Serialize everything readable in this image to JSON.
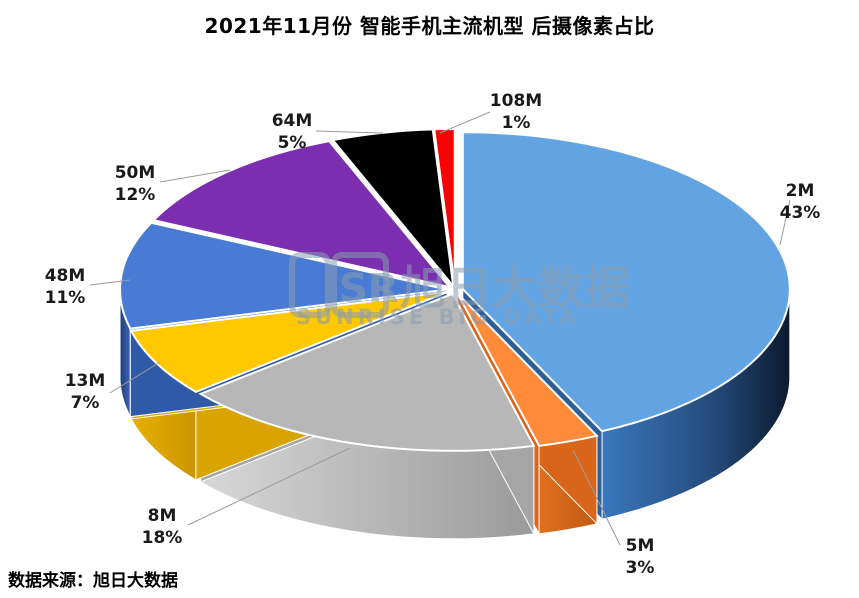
{
  "title": "2021年11月份 智能手机主流机型 后摄像素占比",
  "source": "数据来源：旭日大数据",
  "watermark": {
    "logo_text": "SR",
    "name_cn": "旭日大数据",
    "name_en": "SUNRISE BIG DATA"
  },
  "chart_data": {
    "type": "pie",
    "title": "2021年11月份 智能手机主流机型 后摄像素占比",
    "style": "3d-exploded",
    "slices": [
      {
        "label": "2M",
        "percent_label": "43%",
        "value": 43,
        "color": "#62A4E3",
        "side_color": "#2d5f96"
      },
      {
        "label": "5M",
        "percent_label": "3%",
        "value": 3,
        "color": "#FF8A3A",
        "side_color": "#d9651a"
      },
      {
        "label": "8M",
        "percent_label": "18%",
        "value": 18,
        "color": "#B7B7B7",
        "side_color": "#a6a6a6"
      },
      {
        "label": "13M",
        "percent_label": "7%",
        "value": 7,
        "color": "#FFC800",
        "side_color": "#d9a400"
      },
      {
        "label": "48M",
        "percent_label": "11%",
        "value": 11,
        "color": "#4A7BD4",
        "side_color": "#2f5aa8"
      },
      {
        "label": "50M",
        "percent_label": "12%",
        "value": 12,
        "color": "#7B2FB0",
        "side_color": "#5a1e85"
      },
      {
        "label": "64M",
        "percent_label": "5%",
        "value": 5,
        "color": "#000000",
        "side_color": "#111111"
      },
      {
        "label": "108M",
        "percent_label": "1%",
        "value": 1,
        "color": "#FF0000",
        "side_color": "#b00000"
      }
    ],
    "legend": "none",
    "data_labels": "outside-with-leader-lines"
  }
}
